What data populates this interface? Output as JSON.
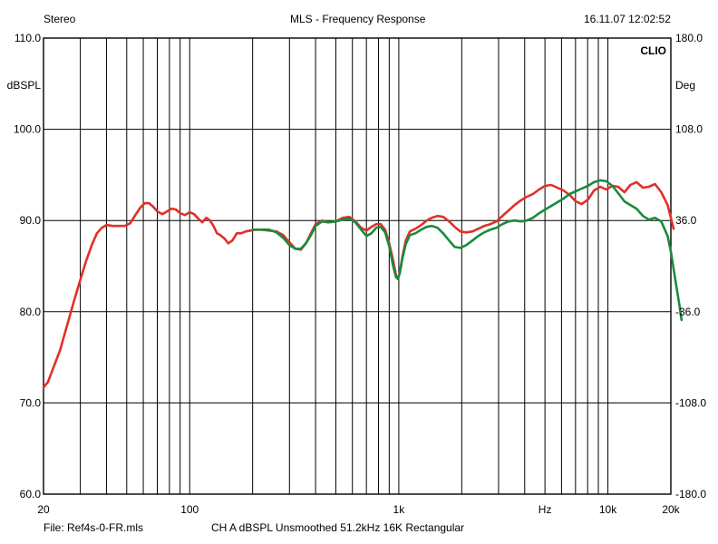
{
  "header": {
    "left": "Stereo",
    "title": "MLS - Frequency Response",
    "datetime": "16.11.07 12:02:52"
  },
  "footer": {
    "file": "File: Ref4s-0-FR.mls",
    "settings": "CH A   dBSPL   Unsmoothed   51.2kHz   16K   Rectangular"
  },
  "chart_data": {
    "type": "line",
    "brand": "CLIO",
    "xscale": "log",
    "xlim": [
      20,
      20000
    ],
    "ylim": [
      60,
      110
    ],
    "y2lim": [
      -180,
      180
    ],
    "ylabel": "dBSPL",
    "y2label": "Deg",
    "xlabel": "Hz",
    "grid": true,
    "x_tick_labels": [
      {
        "value": 20,
        "label": "20"
      },
      {
        "value": 100,
        "label": "100"
      },
      {
        "value": 1000,
        "label": "1k"
      },
      {
        "value": 10000,
        "label": "10k"
      },
      {
        "value": 20000,
        "label": "20k"
      }
    ],
    "xlabel_at": 5000,
    "y_tick_labels": [
      {
        "value": 110,
        "label": "110.0"
      },
      {
        "value": 100,
        "label": "100.0"
      },
      {
        "value": 90,
        "label": "90.0"
      },
      {
        "value": 80,
        "label": "80.0"
      },
      {
        "value": 70,
        "label": "70.0"
      },
      {
        "value": 60,
        "label": "60.0"
      }
    ],
    "y2_tick_labels": [
      {
        "value": 180,
        "label": "180.0"
      },
      {
        "value": 108,
        "label": "108.0"
      },
      {
        "value": 36,
        "label": "36.0"
      },
      {
        "value": -36,
        "label": "-36.0"
      },
      {
        "value": -108,
        "label": "-108.0"
      },
      {
        "value": -180,
        "label": "-180.0"
      }
    ],
    "series": [
      {
        "color": "#e0302a",
        "points": [
          [
            20,
            71.7
          ],
          [
            21,
            72.3
          ],
          [
            22,
            73.5
          ],
          [
            24,
            75.8
          ],
          [
            26,
            78.6
          ],
          [
            28,
            81.2
          ],
          [
            30,
            83.5
          ],
          [
            32,
            85.6
          ],
          [
            34,
            87.3
          ],
          [
            36,
            88.6
          ],
          [
            38,
            89.2
          ],
          [
            40,
            89.5
          ],
          [
            43,
            89.4
          ],
          [
            46,
            89.4
          ],
          [
            49,
            89.4
          ],
          [
            52,
            89.7
          ],
          [
            55,
            90.6
          ],
          [
            58,
            91.4
          ],
          [
            61,
            91.9
          ],
          [
            64,
            91.9
          ],
          [
            67,
            91.5
          ],
          [
            70,
            91.0
          ],
          [
            74,
            90.7
          ],
          [
            78,
            91.0
          ],
          [
            82,
            91.3
          ],
          [
            86,
            91.2
          ],
          [
            90,
            90.8
          ],
          [
            95,
            90.6
          ],
          [
            100,
            90.9
          ],
          [
            105,
            90.7
          ],
          [
            110,
            90.2
          ],
          [
            115,
            89.8
          ],
          [
            120,
            90.3
          ],
          [
            125,
            90.0
          ],
          [
            130,
            89.4
          ],
          [
            135,
            88.6
          ],
          [
            140,
            88.4
          ],
          [
            147,
            88.0
          ],
          [
            153,
            87.5
          ],
          [
            160,
            87.8
          ],
          [
            168,
            88.6
          ],
          [
            176,
            88.6
          ],
          [
            185,
            88.8
          ],
          [
            195,
            88.9
          ],
          [
            205,
            89.0
          ],
          [
            220,
            89.0
          ],
          [
            240,
            88.9
          ],
          [
            260,
            88.8
          ],
          [
            280,
            88.4
          ],
          [
            300,
            87.6
          ],
          [
            320,
            86.9
          ],
          [
            340,
            86.8
          ],
          [
            360,
            87.5
          ],
          [
            380,
            88.6
          ],
          [
            400,
            89.6
          ],
          [
            430,
            90.0
          ],
          [
            460,
            89.8
          ],
          [
            500,
            89.9
          ],
          [
            540,
            90.3
          ],
          [
            580,
            90.4
          ],
          [
            620,
            89.9
          ],
          [
            660,
            89.2
          ],
          [
            700,
            88.9
          ],
          [
            740,
            89.3
          ],
          [
            780,
            89.6
          ],
          [
            820,
            89.6
          ],
          [
            860,
            89.0
          ],
          [
            900,
            87.5
          ],
          [
            940,
            85.6
          ],
          [
            970,
            84.0
          ],
          [
            990,
            83.6
          ],
          [
            1010,
            84.2
          ],
          [
            1040,
            86.0
          ],
          [
            1080,
            87.8
          ],
          [
            1130,
            88.8
          ],
          [
            1200,
            89.1
          ],
          [
            1280,
            89.5
          ],
          [
            1360,
            90.0
          ],
          [
            1440,
            90.3
          ],
          [
            1530,
            90.5
          ],
          [
            1630,
            90.4
          ],
          [
            1740,
            89.9
          ],
          [
            1850,
            89.3
          ],
          [
            1970,
            88.8
          ],
          [
            2100,
            88.7
          ],
          [
            2250,
            88.8
          ],
          [
            2400,
            89.1
          ],
          [
            2560,
            89.4
          ],
          [
            2740,
            89.6
          ],
          [
            2930,
            89.9
          ],
          [
            3130,
            90.5
          ],
          [
            3350,
            91.1
          ],
          [
            3580,
            91.7
          ],
          [
            3830,
            92.2
          ],
          [
            4100,
            92.6
          ],
          [
            4380,
            92.9
          ],
          [
            4690,
            93.4
          ],
          [
            5010,
            93.8
          ],
          [
            5360,
            93.9
          ],
          [
            5730,
            93.6
          ],
          [
            6130,
            93.3
          ],
          [
            6560,
            92.8
          ],
          [
            7020,
            92.1
          ],
          [
            7500,
            91.8
          ],
          [
            8030,
            92.3
          ],
          [
            8590,
            93.3
          ],
          [
            9190,
            93.7
          ],
          [
            9830,
            93.4
          ],
          [
            10500,
            93.8
          ],
          [
            11200,
            93.7
          ],
          [
            12000,
            93.1
          ],
          [
            12800,
            93.9
          ],
          [
            13700,
            94.2
          ],
          [
            14700,
            93.6
          ],
          [
            15700,
            93.7
          ],
          [
            16800,
            94.0
          ],
          [
            18000,
            93.1
          ],
          [
            19300,
            91.7
          ],
          [
            20000,
            90.3
          ],
          [
            20600,
            89.1
          ]
        ]
      },
      {
        "color": "#1a8a3c",
        "points": [
          [
            200,
            89.0
          ],
          [
            220,
            89.0
          ],
          [
            240,
            89.0
          ],
          [
            260,
            88.7
          ],
          [
            280,
            88.1
          ],
          [
            300,
            87.3
          ],
          [
            320,
            86.9
          ],
          [
            340,
            86.9
          ],
          [
            360,
            87.5
          ],
          [
            380,
            88.4
          ],
          [
            400,
            89.4
          ],
          [
            430,
            89.9
          ],
          [
            460,
            89.8
          ],
          [
            500,
            89.9
          ],
          [
            540,
            90.1
          ],
          [
            580,
            90.2
          ],
          [
            620,
            89.8
          ],
          [
            660,
            89.0
          ],
          [
            700,
            88.3
          ],
          [
            740,
            88.6
          ],
          [
            780,
            89.2
          ],
          [
            820,
            89.3
          ],
          [
            860,
            88.7
          ],
          [
            900,
            87.2
          ],
          [
            940,
            85.0
          ],
          [
            970,
            83.8
          ],
          [
            990,
            83.6
          ],
          [
            1010,
            84.2
          ],
          [
            1040,
            85.8
          ],
          [
            1080,
            87.4
          ],
          [
            1130,
            88.4
          ],
          [
            1200,
            88.6
          ],
          [
            1280,
            89.0
          ],
          [
            1360,
            89.3
          ],
          [
            1440,
            89.4
          ],
          [
            1530,
            89.2
          ],
          [
            1630,
            88.6
          ],
          [
            1740,
            87.8
          ],
          [
            1850,
            87.1
          ],
          [
            1970,
            87.0
          ],
          [
            2100,
            87.3
          ],
          [
            2250,
            87.8
          ],
          [
            2400,
            88.3
          ],
          [
            2560,
            88.7
          ],
          [
            2740,
            89.0
          ],
          [
            2930,
            89.2
          ],
          [
            3130,
            89.6
          ],
          [
            3350,
            89.9
          ],
          [
            3580,
            90.0
          ],
          [
            3830,
            89.9
          ],
          [
            4100,
            90.0
          ],
          [
            4380,
            90.3
          ],
          [
            4690,
            90.8
          ],
          [
            5010,
            91.2
          ],
          [
            5360,
            91.6
          ],
          [
            5730,
            92.0
          ],
          [
            6130,
            92.4
          ],
          [
            6560,
            92.9
          ],
          [
            7020,
            93.2
          ],
          [
            7500,
            93.5
          ],
          [
            8030,
            93.8
          ],
          [
            8590,
            94.2
          ],
          [
            9190,
            94.4
          ],
          [
            9830,
            94.3
          ],
          [
            10500,
            93.8
          ],
          [
            11200,
            93.0
          ],
          [
            12000,
            92.1
          ],
          [
            12800,
            91.7
          ],
          [
            13700,
            91.3
          ],
          [
            14700,
            90.5
          ],
          [
            15700,
            90.1
          ],
          [
            16800,
            90.3
          ],
          [
            18000,
            89.9
          ],
          [
            19300,
            88.3
          ],
          [
            20000,
            86.6
          ],
          [
            21000,
            83.5
          ],
          [
            22000,
            80.7
          ],
          [
            22500,
            79.1
          ]
        ]
      }
    ]
  }
}
